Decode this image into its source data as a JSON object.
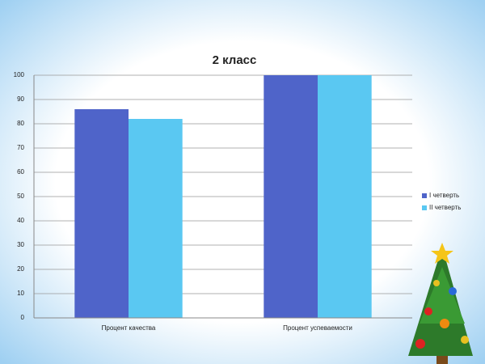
{
  "chart_data": {
    "type": "bar",
    "title": "2 класс",
    "categories": [
      "Процент  качества",
      "Процент  успеваемости"
    ],
    "series": [
      {
        "name": "I четверть",
        "color": "#4f64c9",
        "values": [
          86,
          100
        ]
      },
      {
        "name": "II четверть",
        "color": "#5ac8f2",
        "values": [
          82,
          100
        ]
      }
    ],
    "ylim": [
      0,
      100
    ],
    "yticks": [
      0,
      10,
      20,
      30,
      40,
      50,
      60,
      70,
      80,
      90,
      100
    ],
    "grid": true,
    "legend": "right"
  }
}
